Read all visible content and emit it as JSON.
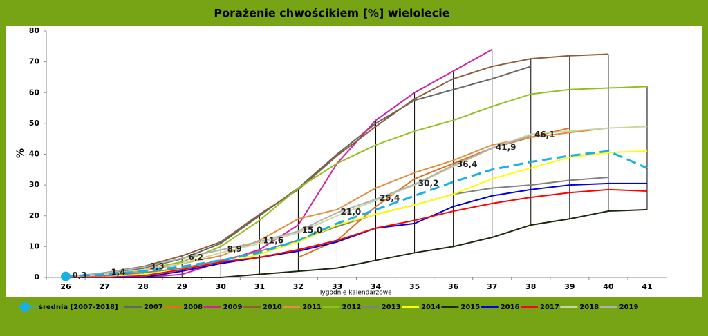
{
  "chart_data": {
    "type": "line",
    "title": "Porażenie chwościkiem [%] wielolecie",
    "xlabel": "Tygodnie kalendarzowe",
    "ylabel": "%",
    "categories": [
      "26",
      "27",
      "28",
      "29",
      "30",
      "31",
      "32",
      "33",
      "34",
      "35",
      "36",
      "37",
      "38",
      "39",
      "40",
      "41"
    ],
    "ylim": [
      0,
      80
    ],
    "yticks": [
      0,
      10,
      20,
      30,
      40,
      50,
      60,
      70,
      80
    ],
    "drop_lines": true,
    "series": [
      {
        "name": "średnia [2007-2018]",
        "color": "#1ab0e6",
        "dashed": true,
        "values": [
          0.3,
          1,
          2,
          3.5,
          5.5,
          8,
          12,
          17.5,
          22,
          26.5,
          31,
          35,
          37.5,
          39.5,
          41,
          35.5
        ]
      },
      {
        "name": "2007",
        "color": "#666666",
        "values": [
          0,
          1,
          3,
          6,
          11,
          20,
          29,
          40,
          50,
          57.5,
          61,
          64.5,
          68.5,
          null,
          null,
          null
        ]
      },
      {
        "name": "2008",
        "color": "#e07020",
        "values": [
          null,
          null,
          null,
          null,
          null,
          null,
          6.5,
          12,
          23,
          32,
          37,
          42,
          45.5,
          48.5,
          null,
          null
        ]
      },
      {
        "name": "2009",
        "color": "#d020a0",
        "values": [
          0,
          0,
          0,
          1,
          5,
          9,
          17,
          37,
          51,
          60,
          67,
          74,
          null,
          null,
          null,
          null
        ]
      },
      {
        "name": "2010",
        "color": "#8b5e3c",
        "values": [
          0,
          1.5,
          3.5,
          7,
          11.5,
          20.5,
          28.5,
          39.5,
          49,
          58,
          64.5,
          68.5,
          71,
          72,
          72.5,
          null
        ]
      },
      {
        "name": "2011",
        "color": "#e09040",
        "values": [
          0,
          1,
          2,
          4.5,
          7,
          12,
          19,
          22,
          29,
          34,
          38,
          43,
          45.5,
          47,
          48.5,
          null
        ]
      },
      {
        "name": "2012",
        "color": "#90c020",
        "values": [
          0,
          1,
          2.5,
          5,
          10,
          18.5,
          29,
          37,
          43,
          47.5,
          51,
          55.5,
          59.5,
          61,
          61.5,
          62
        ]
      },
      {
        "name": "2013",
        "color": "#808080",
        "values": [
          0,
          0.5,
          1.5,
          3,
          5.5,
          8.5,
          12,
          16.5,
          20.5,
          23.5,
          27,
          29,
          30,
          31.5,
          32.5,
          null
        ]
      },
      {
        "name": "2014",
        "color": "#ffff00",
        "values": [
          0,
          0,
          1,
          2.5,
          4.5,
          7.5,
          11.5,
          17,
          20.5,
          23.5,
          27,
          32,
          35.5,
          39,
          40.5,
          41
        ]
      },
      {
        "name": "2015",
        "color": "#1a2a0a",
        "values": [
          0,
          0,
          0,
          0,
          0,
          1,
          2,
          3,
          5.5,
          8,
          10,
          13,
          17,
          19,
          21.5,
          22
        ]
      },
      {
        "name": "2016",
        "color": "#0000e0",
        "values": [
          0,
          0,
          0,
          2,
          4.5,
          6.5,
          8.5,
          11.5,
          16,
          17.5,
          23,
          26.5,
          28.5,
          30,
          30.5,
          30.5
        ]
      },
      {
        "name": "2017",
        "color": "#ff0000",
        "values": [
          0,
          0,
          0.5,
          2.5,
          5,
          6.5,
          9,
          12,
          16,
          18.5,
          21.5,
          24,
          26,
          27.5,
          28.5,
          28
        ]
      },
      {
        "name": "2018",
        "color": "#c8d8a0",
        "values": [
          0,
          1,
          2.5,
          4.5,
          8,
          11,
          14.5,
          20,
          25,
          30,
          36,
          42,
          46.5,
          47.5,
          48.5,
          49
        ]
      },
      {
        "name": "2019",
        "color": "#b0b0b0",
        "values": [
          0.3,
          1.4,
          3.3,
          6.2,
          8.9,
          11.6,
          15.0,
          21.0,
          25.4,
          30.2,
          36.4,
          41.9,
          46.1,
          null,
          null,
          null
        ],
        "value_labels": [
          "0,3",
          "1,4",
          "3,3",
          "6,2",
          "8,9",
          "11,6",
          "15,0",
          "21,0",
          "25,4",
          "30,2",
          "36,4",
          "41,9",
          "46,1",
          null,
          null,
          null
        ]
      }
    ]
  }
}
